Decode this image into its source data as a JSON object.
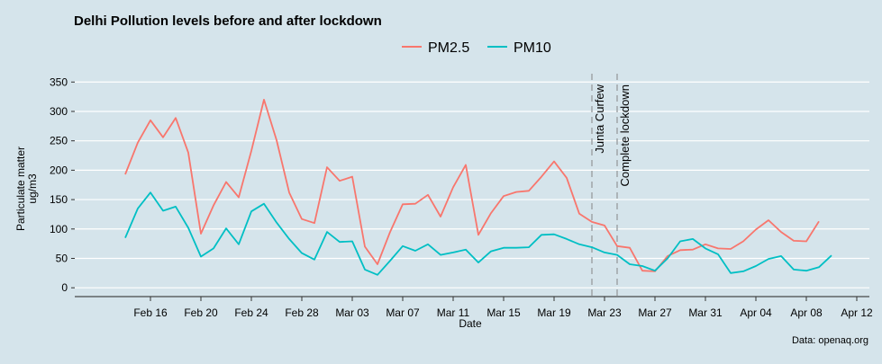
{
  "chart_data": {
    "type": "line",
    "title": "Delhi Pollution levels before and after lockdown",
    "xlabel": "Date",
    "ylabel_lines": [
      "Particulate matter",
      "ug/m3"
    ],
    "caption": "Data: openaq.org",
    "legend_placement": "top",
    "grid": true,
    "x_start": "2020-02-14",
    "xlim": [
      "2020-02-10",
      "2020-04-13"
    ],
    "ylim": [
      -15,
      355
    ],
    "yticks": [
      0,
      50,
      100,
      150,
      200,
      250,
      300,
      350
    ],
    "xticks": [
      {
        "date": "2020-02-16",
        "label": "Feb 16"
      },
      {
        "date": "2020-02-20",
        "label": "Feb 20"
      },
      {
        "date": "2020-02-24",
        "label": "Feb 24"
      },
      {
        "date": "2020-02-28",
        "label": "Feb 28"
      },
      {
        "date": "2020-03-03",
        "label": "Mar 03"
      },
      {
        "date": "2020-03-07",
        "label": "Mar 07"
      },
      {
        "date": "2020-03-11",
        "label": "Mar 11"
      },
      {
        "date": "2020-03-15",
        "label": "Mar 15"
      },
      {
        "date": "2020-03-19",
        "label": "Mar 19"
      },
      {
        "date": "2020-03-23",
        "label": "Mar 23"
      },
      {
        "date": "2020-03-27",
        "label": "Mar 27"
      },
      {
        "date": "2020-03-31",
        "label": "Mar 31"
      },
      {
        "date": "2020-04-04",
        "label": "Apr 04"
      },
      {
        "date": "2020-04-08",
        "label": "Apr 08"
      },
      {
        "date": "2020-04-12",
        "label": "Apr 12"
      }
    ],
    "annotations": [
      {
        "date": "2020-03-22",
        "label": "Junta Curfew"
      },
      {
        "date": "2020-03-24",
        "label": "Complete lockdown"
      }
    ],
    "series": [
      {
        "name": "PM2.5",
        "color": "#f8766d",
        "values": [
          193,
          247,
          285,
          256,
          289,
          230,
          92,
          140,
          180,
          154,
          233,
          320,
          251,
          162,
          117,
          110,
          205,
          182,
          189,
          70,
          40,
          95,
          142,
          143,
          158,
          121,
          171,
          209,
          90,
          127,
          156,
          163,
          165,
          189,
          215,
          187,
          126,
          112,
          106,
          71,
          68,
          29,
          28,
          54,
          64,
          65,
          74,
          67,
          66,
          79,
          99,
          115,
          95,
          80,
          79,
          113
        ]
      },
      {
        "name": "PM10",
        "color": "#00bfc4",
        "values": [
          85,
          135,
          162,
          131,
          138,
          102,
          53,
          67,
          101,
          74,
          130,
          143,
          111,
          83,
          59,
          48,
          95,
          78,
          79,
          31,
          22,
          46,
          71,
          63,
          74,
          56,
          60,
          65,
          43,
          62,
          68,
          68,
          69,
          90,
          91,
          83,
          74,
          69,
          60,
          56,
          40,
          37,
          29,
          50,
          79,
          83,
          67,
          57,
          25,
          28,
          37,
          49,
          54,
          31,
          29,
          35,
          55
        ]
      }
    ]
  }
}
